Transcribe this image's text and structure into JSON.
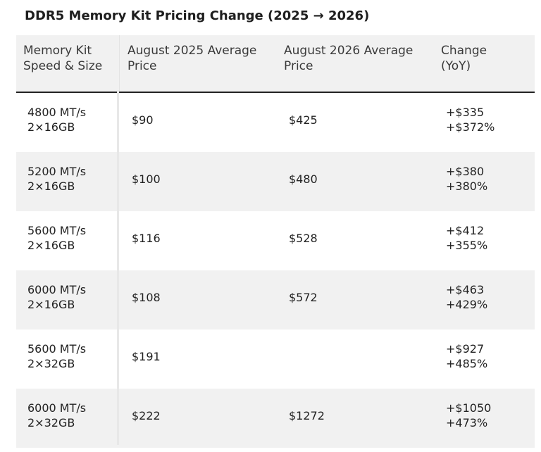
{
  "title": "DDR5 Memory Kit Pricing Change (2025 → 2026)",
  "table": {
    "headers": {
      "col1": [
        "Memory Kit",
        "Speed & Size"
      ],
      "col2": [
        "August 2025 Average",
        "Price"
      ],
      "col3": [
        "August 2026 Average",
        "Price"
      ],
      "col4": [
        "Change",
        "(YoY)"
      ]
    },
    "rows": [
      {
        "speed": "4800 MT/s",
        "size": "2×16GB",
        "price_2025": "$90",
        "price_2026": "$425",
        "change_abs": "+$335",
        "change_pct": "+$372%"
      },
      {
        "speed": "5200 MT/s",
        "size": "2×16GB",
        "price_2025": "$100",
        "price_2026": "$480",
        "change_abs": "+$380",
        "change_pct": "+380%"
      },
      {
        "speed": "5600 MT/s",
        "size": "2×16GB",
        "price_2025": "$116",
        "price_2026": "$528",
        "change_abs": "+$412",
        "change_pct": "+355%"
      },
      {
        "speed": "6000 MT/s",
        "size": "2×16GB",
        "price_2025": "$108",
        "price_2026": "$572",
        "change_abs": "+$463",
        "change_pct": "+429%"
      },
      {
        "speed": "5600 MT/s",
        "size": "2×32GB",
        "price_2025": "$191",
        "price_2026": "",
        "change_abs": "+$927",
        "change_pct": "+485%"
      },
      {
        "speed": "6000 MT/s",
        "size": "2×32GB",
        "price_2025": "$222",
        "price_2026": "$1272",
        "change_abs": "+$1050",
        "change_pct": "+473%"
      }
    ]
  }
}
